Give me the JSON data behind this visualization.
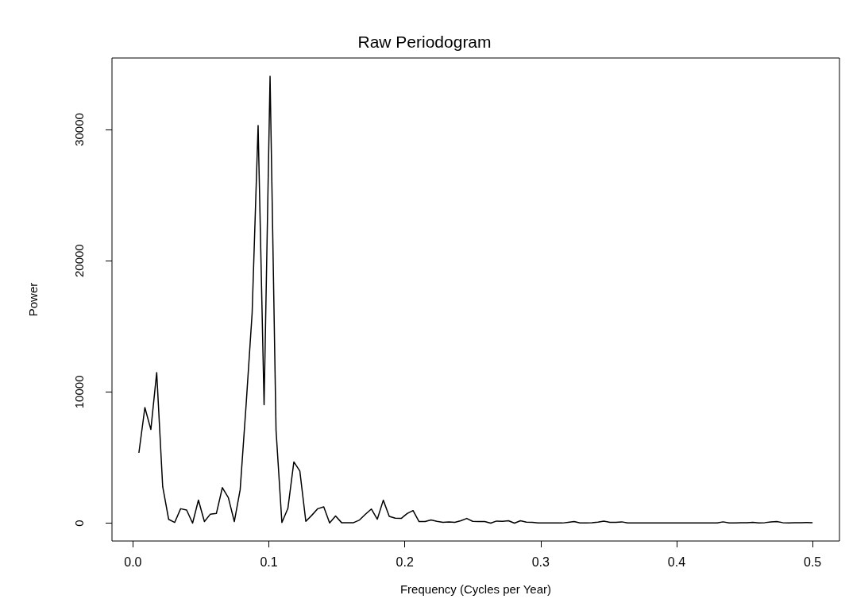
{
  "chart_data": {
    "type": "line",
    "title": "Raw Periodogram",
    "xlabel": "Frequency (Cycles per Year)",
    "ylabel": "Power",
    "x": [
      0.0044,
      0.0088,
      0.0132,
      0.0175,
      0.0219,
      0.0263,
      0.0307,
      0.0351,
      0.0395,
      0.0439,
      0.0482,
      0.0526,
      0.057,
      0.0614,
      0.0658,
      0.0702,
      0.0746,
      0.0789,
      0.0833,
      0.0877,
      0.0921,
      0.0965,
      0.1009,
      0.1053,
      0.1096,
      0.114,
      0.1184,
      0.1228,
      0.1272,
      0.1316,
      0.136,
      0.1404,
      0.1447,
      0.1491,
      0.1535,
      0.1579,
      0.1623,
      0.1667,
      0.1711,
      0.1754,
      0.1798,
      0.1842,
      0.1886,
      0.193,
      0.1974,
      0.2018,
      0.2061,
      0.2105,
      0.2149,
      0.2193,
      0.2237,
      0.2281,
      0.2325,
      0.2368,
      0.2412,
      0.2456,
      0.25,
      0.2544,
      0.2588,
      0.2632,
      0.2675,
      0.2719,
      0.2763,
      0.2807,
      0.2851,
      0.2895,
      0.2939,
      0.2982,
      0.3026,
      0.307,
      0.3114,
      0.3158,
      0.3202,
      0.3246,
      0.3289,
      0.3333,
      0.3377,
      0.3421,
      0.3465,
      0.3509,
      0.3553,
      0.3596,
      0.364,
      0.3684,
      0.3728,
      0.3772,
      0.3816,
      0.386,
      0.3904,
      0.3947,
      0.3991,
      0.4035,
      0.4079,
      0.4123,
      0.4167,
      0.4211,
      0.4254,
      0.4298,
      0.4342,
      0.4386,
      0.443,
      0.4474,
      0.4518,
      0.4561,
      0.4605,
      0.4649,
      0.4693,
      0.4737,
      0.4781,
      0.4825,
      0.4868,
      0.4912,
      0.4956,
      0.5
    ],
    "series": [
      {
        "color": "#000000",
        "values": [
          5360,
          8810,
          7140,
          11480,
          2790,
          290,
          50,
          1100,
          1000,
          0,
          1760,
          120,
          690,
          740,
          2710,
          1950,
          120,
          2550,
          9050,
          16000,
          30300,
          9020,
          34050,
          7070,
          50,
          1120,
          4670,
          3980,
          140,
          600,
          1100,
          1240,
          20,
          540,
          40,
          40,
          40,
          240,
          680,
          1080,
          300,
          1750,
          520,
          380,
          360,
          740,
          960,
          120,
          120,
          240,
          140,
          60,
          100,
          60,
          180,
          360,
          140,
          120,
          120,
          0,
          160,
          140,
          180,
          0,
          180,
          80,
          60,
          20,
          20,
          20,
          20,
          10,
          60,
          120,
          20,
          10,
          30,
          80,
          160,
          60,
          60,
          100,
          20,
          10,
          10,
          20,
          10,
          10,
          20,
          10,
          10,
          10,
          20,
          10,
          10,
          10,
          10,
          20,
          100,
          20,
          20,
          40,
          40,
          60,
          20,
          40,
          100,
          120,
          40,
          20,
          30,
          40,
          50,
          30
        ]
      }
    ],
    "xlim": [
      -0.0154,
      0.5198
    ],
    "xticks": [
      {
        "value": 0,
        "label": "0.0"
      },
      0.1,
      0.2,
      0.3,
      0.4,
      0.5
    ],
    "ylim": [
      -1360,
      35450
    ],
    "yticks": [
      0,
      10000,
      20000,
      30000
    ],
    "grid": false,
    "marker": "none"
  }
}
